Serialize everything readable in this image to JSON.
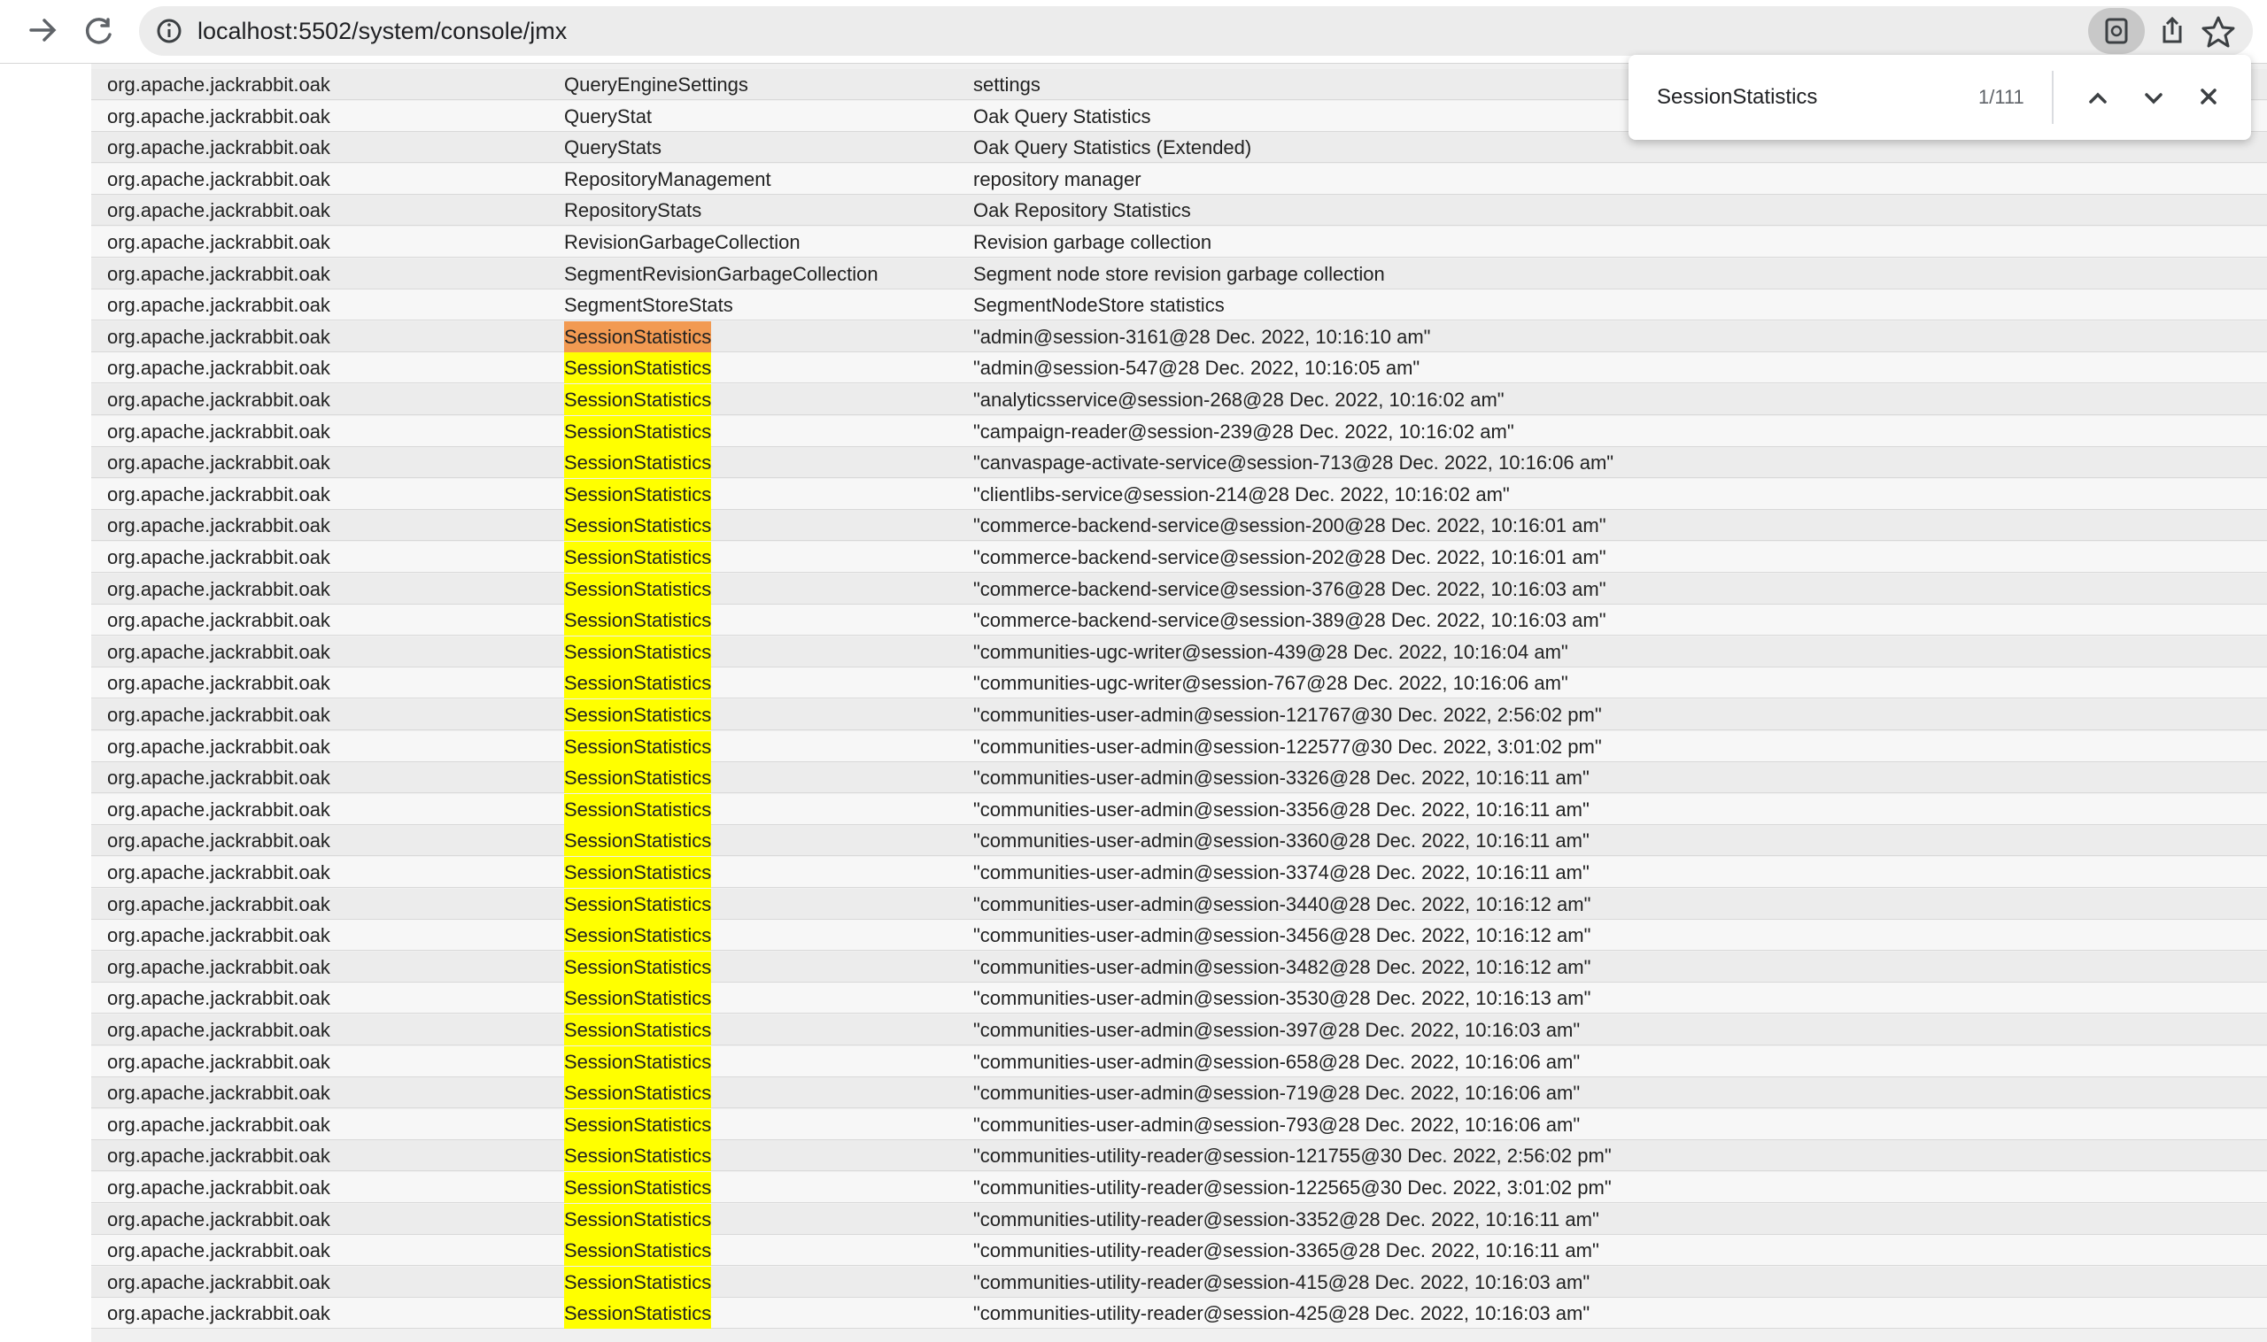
{
  "browser": {
    "url": "localhost:5502/system/console/jmx"
  },
  "find": {
    "query": "SessionStatistics",
    "count": "1/111"
  },
  "table": {
    "rows": [
      [
        "org.apache.jackrabbit.oak",
        "QueryEngineSettings",
        "settings"
      ],
      [
        "org.apache.jackrabbit.oak",
        "QueryStat",
        "Oak Query Statistics"
      ],
      [
        "org.apache.jackrabbit.oak",
        "QueryStats",
        "Oak Query Statistics (Extended)"
      ],
      [
        "org.apache.jackrabbit.oak",
        "RepositoryManagement",
        "repository manager"
      ],
      [
        "org.apache.jackrabbit.oak",
        "RepositoryStats",
        "Oak Repository Statistics"
      ],
      [
        "org.apache.jackrabbit.oak",
        "RevisionGarbageCollection",
        "Revision garbage collection"
      ],
      [
        "org.apache.jackrabbit.oak",
        "SegmentRevisionGarbageCollection",
        "Segment node store revision garbage collection"
      ],
      [
        "org.apache.jackrabbit.oak",
        "SegmentStoreStats",
        "SegmentNodeStore statistics"
      ],
      [
        "org.apache.jackrabbit.oak",
        "SessionStatistics",
        "\"admin@session-3161@28 Dec. 2022, 10:16:10 am\""
      ],
      [
        "org.apache.jackrabbit.oak",
        "SessionStatistics",
        "\"admin@session-547@28 Dec. 2022, 10:16:05 am\""
      ],
      [
        "org.apache.jackrabbit.oak",
        "SessionStatistics",
        "\"analyticsservice@session-268@28 Dec. 2022, 10:16:02 am\""
      ],
      [
        "org.apache.jackrabbit.oak",
        "SessionStatistics",
        "\"campaign-reader@session-239@28 Dec. 2022, 10:16:02 am\""
      ],
      [
        "org.apache.jackrabbit.oak",
        "SessionStatistics",
        "\"canvaspage-activate-service@session-713@28 Dec. 2022, 10:16:06 am\""
      ],
      [
        "org.apache.jackrabbit.oak",
        "SessionStatistics",
        "\"clientlibs-service@session-214@28 Dec. 2022, 10:16:02 am\""
      ],
      [
        "org.apache.jackrabbit.oak",
        "SessionStatistics",
        "\"commerce-backend-service@session-200@28 Dec. 2022, 10:16:01 am\""
      ],
      [
        "org.apache.jackrabbit.oak",
        "SessionStatistics",
        "\"commerce-backend-service@session-202@28 Dec. 2022, 10:16:01 am\""
      ],
      [
        "org.apache.jackrabbit.oak",
        "SessionStatistics",
        "\"commerce-backend-service@session-376@28 Dec. 2022, 10:16:03 am\""
      ],
      [
        "org.apache.jackrabbit.oak",
        "SessionStatistics",
        "\"commerce-backend-service@session-389@28 Dec. 2022, 10:16:03 am\""
      ],
      [
        "org.apache.jackrabbit.oak",
        "SessionStatistics",
        "\"communities-ugc-writer@session-439@28 Dec. 2022, 10:16:04 am\""
      ],
      [
        "org.apache.jackrabbit.oak",
        "SessionStatistics",
        "\"communities-ugc-writer@session-767@28 Dec. 2022, 10:16:06 am\""
      ],
      [
        "org.apache.jackrabbit.oak",
        "SessionStatistics",
        "\"communities-user-admin@session-121767@30 Dec. 2022, 2:56:02 pm\""
      ],
      [
        "org.apache.jackrabbit.oak",
        "SessionStatistics",
        "\"communities-user-admin@session-122577@30 Dec. 2022, 3:01:02 pm\""
      ],
      [
        "org.apache.jackrabbit.oak",
        "SessionStatistics",
        "\"communities-user-admin@session-3326@28 Dec. 2022, 10:16:11 am\""
      ],
      [
        "org.apache.jackrabbit.oak",
        "SessionStatistics",
        "\"communities-user-admin@session-3356@28 Dec. 2022, 10:16:11 am\""
      ],
      [
        "org.apache.jackrabbit.oak",
        "SessionStatistics",
        "\"communities-user-admin@session-3360@28 Dec. 2022, 10:16:11 am\""
      ],
      [
        "org.apache.jackrabbit.oak",
        "SessionStatistics",
        "\"communities-user-admin@session-3374@28 Dec. 2022, 10:16:11 am\""
      ],
      [
        "org.apache.jackrabbit.oak",
        "SessionStatistics",
        "\"communities-user-admin@session-3440@28 Dec. 2022, 10:16:12 am\""
      ],
      [
        "org.apache.jackrabbit.oak",
        "SessionStatistics",
        "\"communities-user-admin@session-3456@28 Dec. 2022, 10:16:12 am\""
      ],
      [
        "org.apache.jackrabbit.oak",
        "SessionStatistics",
        "\"communities-user-admin@session-3482@28 Dec. 2022, 10:16:12 am\""
      ],
      [
        "org.apache.jackrabbit.oak",
        "SessionStatistics",
        "\"communities-user-admin@session-3530@28 Dec. 2022, 10:16:13 am\""
      ],
      [
        "org.apache.jackrabbit.oak",
        "SessionStatistics",
        "\"communities-user-admin@session-397@28 Dec. 2022, 10:16:03 am\""
      ],
      [
        "org.apache.jackrabbit.oak",
        "SessionStatistics",
        "\"communities-user-admin@session-658@28 Dec. 2022, 10:16:06 am\""
      ],
      [
        "org.apache.jackrabbit.oak",
        "SessionStatistics",
        "\"communities-user-admin@session-719@28 Dec. 2022, 10:16:06 am\""
      ],
      [
        "org.apache.jackrabbit.oak",
        "SessionStatistics",
        "\"communities-user-admin@session-793@28 Dec. 2022, 10:16:06 am\""
      ],
      [
        "org.apache.jackrabbit.oak",
        "SessionStatistics",
        "\"communities-utility-reader@session-121755@30 Dec. 2022, 2:56:02 pm\""
      ],
      [
        "org.apache.jackrabbit.oak",
        "SessionStatistics",
        "\"communities-utility-reader@session-122565@30 Dec. 2022, 3:01:02 pm\""
      ],
      [
        "org.apache.jackrabbit.oak",
        "SessionStatistics",
        "\"communities-utility-reader@session-3352@28 Dec. 2022, 10:16:11 am\""
      ],
      [
        "org.apache.jackrabbit.oak",
        "SessionStatistics",
        "\"communities-utility-reader@session-3365@28 Dec. 2022, 10:16:11 am\""
      ],
      [
        "org.apache.jackrabbit.oak",
        "SessionStatistics",
        "\"communities-utility-reader@session-415@28 Dec. 2022, 10:16:03 am\""
      ],
      [
        "org.apache.jackrabbit.oak",
        "SessionStatistics",
        "\"communities-utility-reader@session-425@28 Dec. 2022, 10:16:03 am\""
      ]
    ]
  }
}
